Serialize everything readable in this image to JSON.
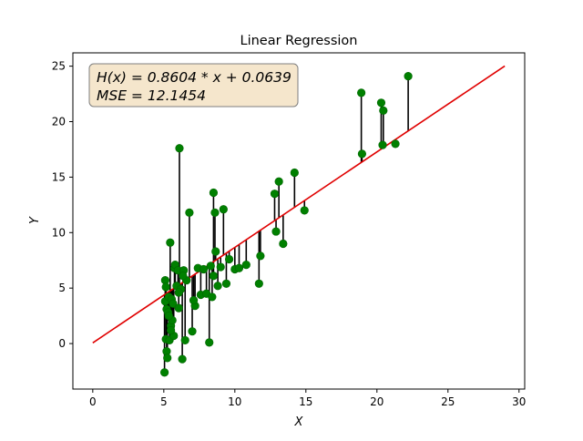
{
  "chart_data": {
    "type": "scatter",
    "title": "Linear Regression",
    "xlabel": "X",
    "ylabel": "Y",
    "xlim": [
      -1.4,
      30.4
    ],
    "ylim": [
      -4.1,
      26.2
    ],
    "xticks": [
      0,
      5,
      10,
      15,
      20,
      25,
      30
    ],
    "yticks": [
      0,
      5,
      10,
      15,
      20,
      25
    ],
    "grid": false,
    "legend": "none",
    "annotation": {
      "line1": "H(x) = 0.8604 * x + 0.0639",
      "line2": "MSE = 12.1454",
      "placement": "top-left"
    },
    "regression": {
      "slope": 0.8604,
      "intercept": 0.0639,
      "x_range": [
        0,
        29
      ],
      "color": "#e00000"
    },
    "points_color": "#008000",
    "residual_color": "#000000",
    "series": [
      {
        "x": [
          5.05,
          5.1,
          5.1,
          5.15,
          5.2,
          5.2,
          5.25,
          5.3,
          5.35,
          5.4,
          5.45,
          5.5,
          5.55,
          5.6,
          5.65,
          5.7,
          5.75,
          5.8,
          5.9,
          6.0,
          6.05,
          6.1,
          6.2,
          6.3,
          6.4,
          6.5,
          6.6,
          6.8,
          7.0,
          7.2,
          7.4,
          7.6,
          7.8,
          8.0,
          8.2,
          8.3,
          8.5,
          8.6,
          8.8,
          9.0,
          9.2,
          9.4,
          9.6,
          10.0,
          10.3,
          10.8,
          11.7,
          11.8,
          12.8,
          12.9,
          13.1,
          13.4,
          14.2,
          14.9,
          18.9,
          18.95,
          20.3,
          20.4,
          20.45,
          21.3,
          22.2,
          5.15,
          5.35,
          5.5,
          6.05,
          6.35,
          7.1,
          8.4,
          8.5,
          8.65
        ],
        "y": [
          -2.6,
          5.7,
          3.8,
          0.4,
          -0.7,
          3.1,
          -1.3,
          2.8,
          4.2,
          0.3,
          9.1,
          1.6,
          4.0,
          2.1,
          3.6,
          0.7,
          6.8,
          7.1,
          5.2,
          6.6,
          3.2,
          17.6,
          4.9,
          -1.4,
          6.6,
          0.3,
          5.7,
          11.8,
          1.1,
          3.4,
          6.8,
          4.4,
          6.7,
          4.5,
          0.1,
          7.0,
          13.6,
          11.8,
          5.2,
          6.9,
          12.1,
          5.4,
          7.6,
          6.7,
          6.8,
          7.1,
          5.4,
          7.9,
          13.5,
          10.1,
          14.6,
          9.0,
          15.4,
          12.0,
          22.6,
          17.1,
          21.7,
          17.9,
          21.0,
          18.0,
          24.1,
          5.1,
          2.5,
          1.2,
          4.6,
          6.1,
          3.9,
          4.2,
          6.1,
          8.3
        ]
      }
    ]
  }
}
